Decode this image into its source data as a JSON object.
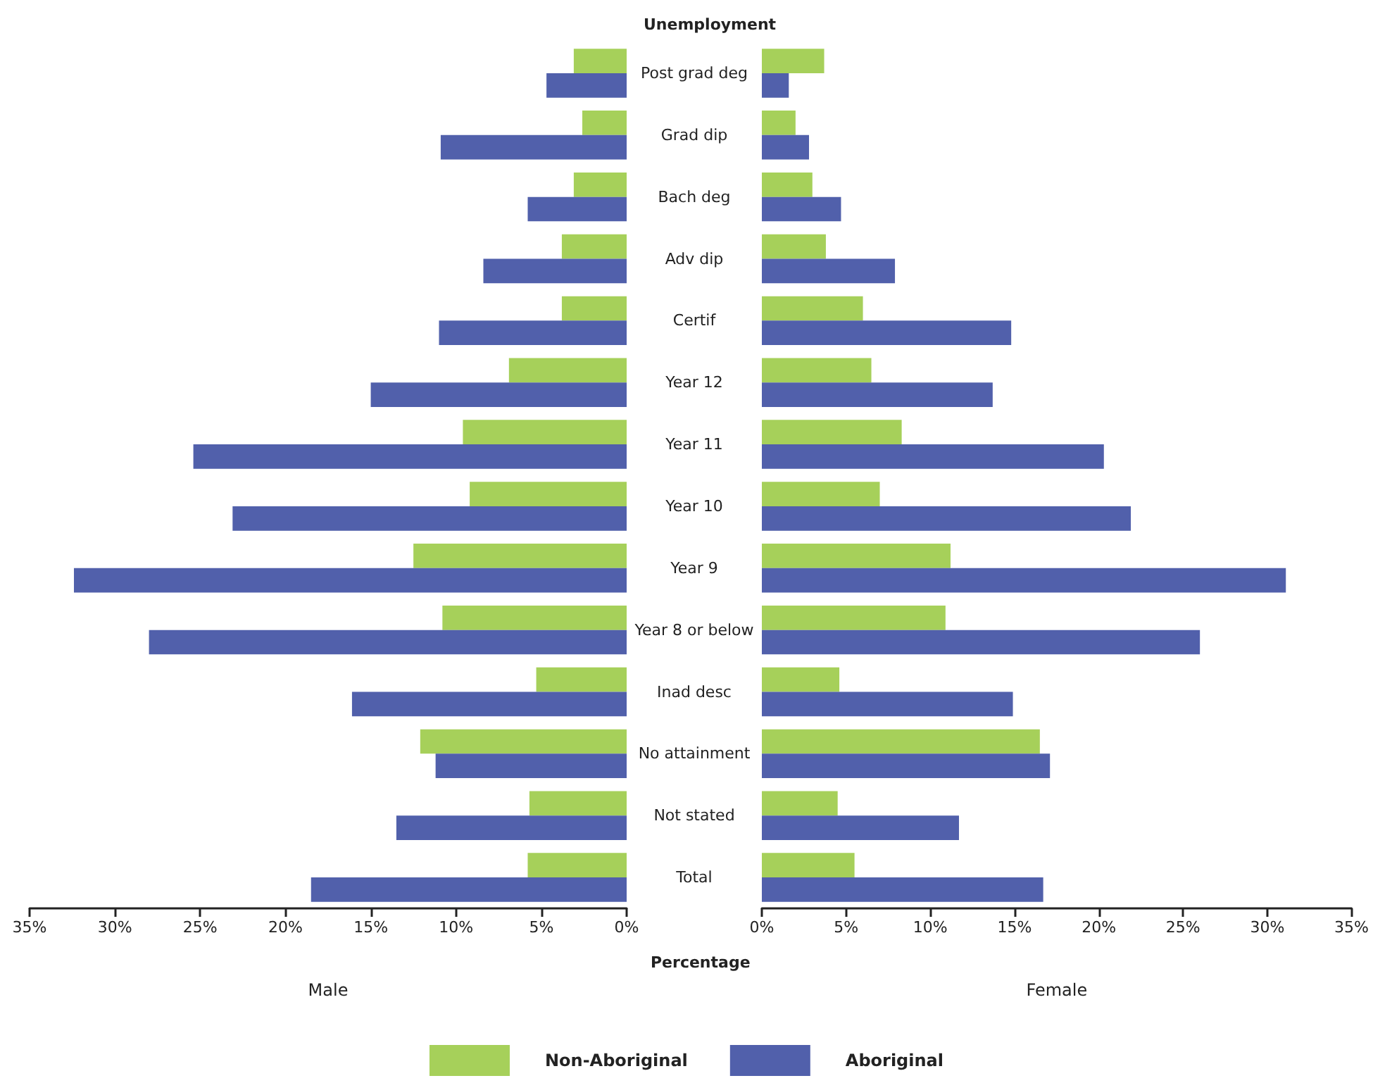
{
  "chart_data": [
    {
      "type": "bar",
      "orientation": "horizontal",
      "title": "Unemployment",
      "xlabel": "Male",
      "annotations": [
        "Percentage"
      ],
      "categories": [
        "Post grad deg",
        "Grad dip",
        "Bach deg",
        "Adv dip",
        "Certif",
        "Year 12",
        "Year 11",
        "Year 10",
        "Year 9",
        "Year 8 or below",
        "Inad desc",
        "No attainment",
        "Not stated",
        "Total"
      ],
      "series": [
        {
          "name": "Non-Aboriginal",
          "color": "#a6d05a",
          "values": [
            3.1,
            2.6,
            3.1,
            3.8,
            3.8,
            6.9,
            9.6,
            9.2,
            12.5,
            10.8,
            5.3,
            12.1,
            5.7,
            5.8
          ]
        },
        {
          "name": "Aboriginal",
          "color": "#5160ab",
          "values": [
            4.7,
            10.9,
            5.8,
            8.4,
            11.0,
            15.0,
            25.4,
            23.1,
            32.4,
            28.0,
            16.1,
            11.2,
            13.5,
            18.5
          ]
        }
      ],
      "xlim": [
        35,
        0
      ],
      "xticks": [
        {
          "value": 35,
          "label": "35%"
        },
        {
          "value": 30,
          "label": "30%"
        },
        {
          "value": 25,
          "label": "25%"
        },
        {
          "value": 20,
          "label": "20%"
        },
        {
          "value": 15,
          "label": "15%"
        },
        {
          "value": 10,
          "label": "10%"
        },
        {
          "value": 5,
          "label": "5%"
        },
        {
          "value": 0,
          "label": "0%"
        }
      ],
      "legend": "bottom"
    },
    {
      "type": "bar",
      "orientation": "horizontal",
      "xlabel": "Female",
      "categories": [
        null,
        null,
        null,
        null,
        null,
        null,
        null,
        null,
        null,
        null,
        null,
        null,
        null,
        null
      ],
      "series": [
        {
          "color": "#a6d05a",
          "values": [
            3.7,
            2.0,
            3.0,
            3.8,
            6.0,
            6.5,
            8.3,
            7.0,
            11.2,
            10.9,
            4.6,
            16.5,
            4.5,
            5.5
          ]
        },
        {
          "color": "#5160ab",
          "values": [
            1.6,
            2.8,
            4.7,
            7.9,
            14.8,
            13.7,
            20.3,
            21.9,
            31.1,
            26.0,
            14.9,
            17.1,
            11.7,
            16.7
          ]
        }
      ],
      "xlim": [
        0,
        35
      ],
      "xticks": [
        {
          "value": 0,
          "label": "0%"
        },
        {
          "value": 5,
          "label": "5%"
        },
        {
          "value": 10,
          "label": "10%"
        },
        {
          "value": 15,
          "label": "15%"
        },
        {
          "value": 20,
          "label": "20%"
        },
        {
          "value": 25,
          "label": "25%"
        },
        {
          "value": 30,
          "label": "30%"
        },
        {
          "value": 35,
          "label": "35%"
        }
      ],
      "tick_labels": "x"
    }
  ]
}
